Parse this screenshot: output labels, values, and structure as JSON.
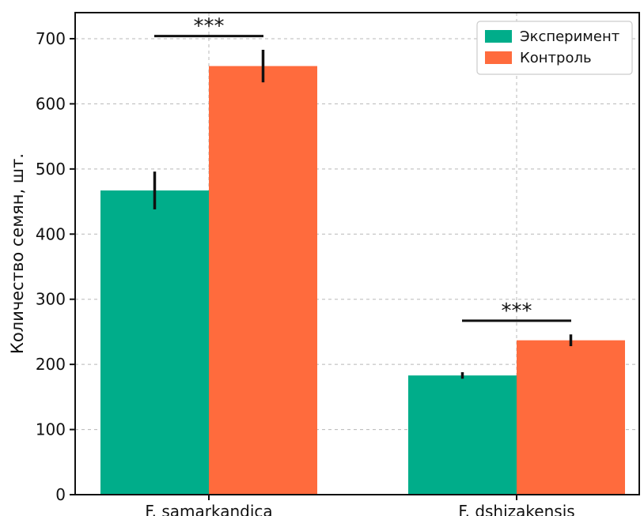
{
  "chart_data": {
    "type": "bar",
    "categories": [
      "F. samarkandica",
      "F. dshizakensis"
    ],
    "series": [
      {
        "name": "Эксперимент",
        "color": "#00ad8a",
        "values": [
          467,
          183
        ],
        "errors": [
          29,
          5
        ]
      },
      {
        "name": "Контроль",
        "color": "#ff6b3d",
        "values": [
          658,
          237
        ],
        "errors": [
          25,
          9
        ]
      }
    ],
    "title": "",
    "xlabel": "",
    "ylabel": "Количество семян, шт.",
    "ylim": [
      0,
      740
    ],
    "yticks": [
      0,
      100,
      200,
      300,
      400,
      500,
      600,
      700
    ],
    "grid": true,
    "legend_position": "top-right",
    "significance": [
      {
        "category_index": 0,
        "label": "***",
        "level": 704
      },
      {
        "category_index": 1,
        "label": "***",
        "level": 267
      }
    ]
  }
}
